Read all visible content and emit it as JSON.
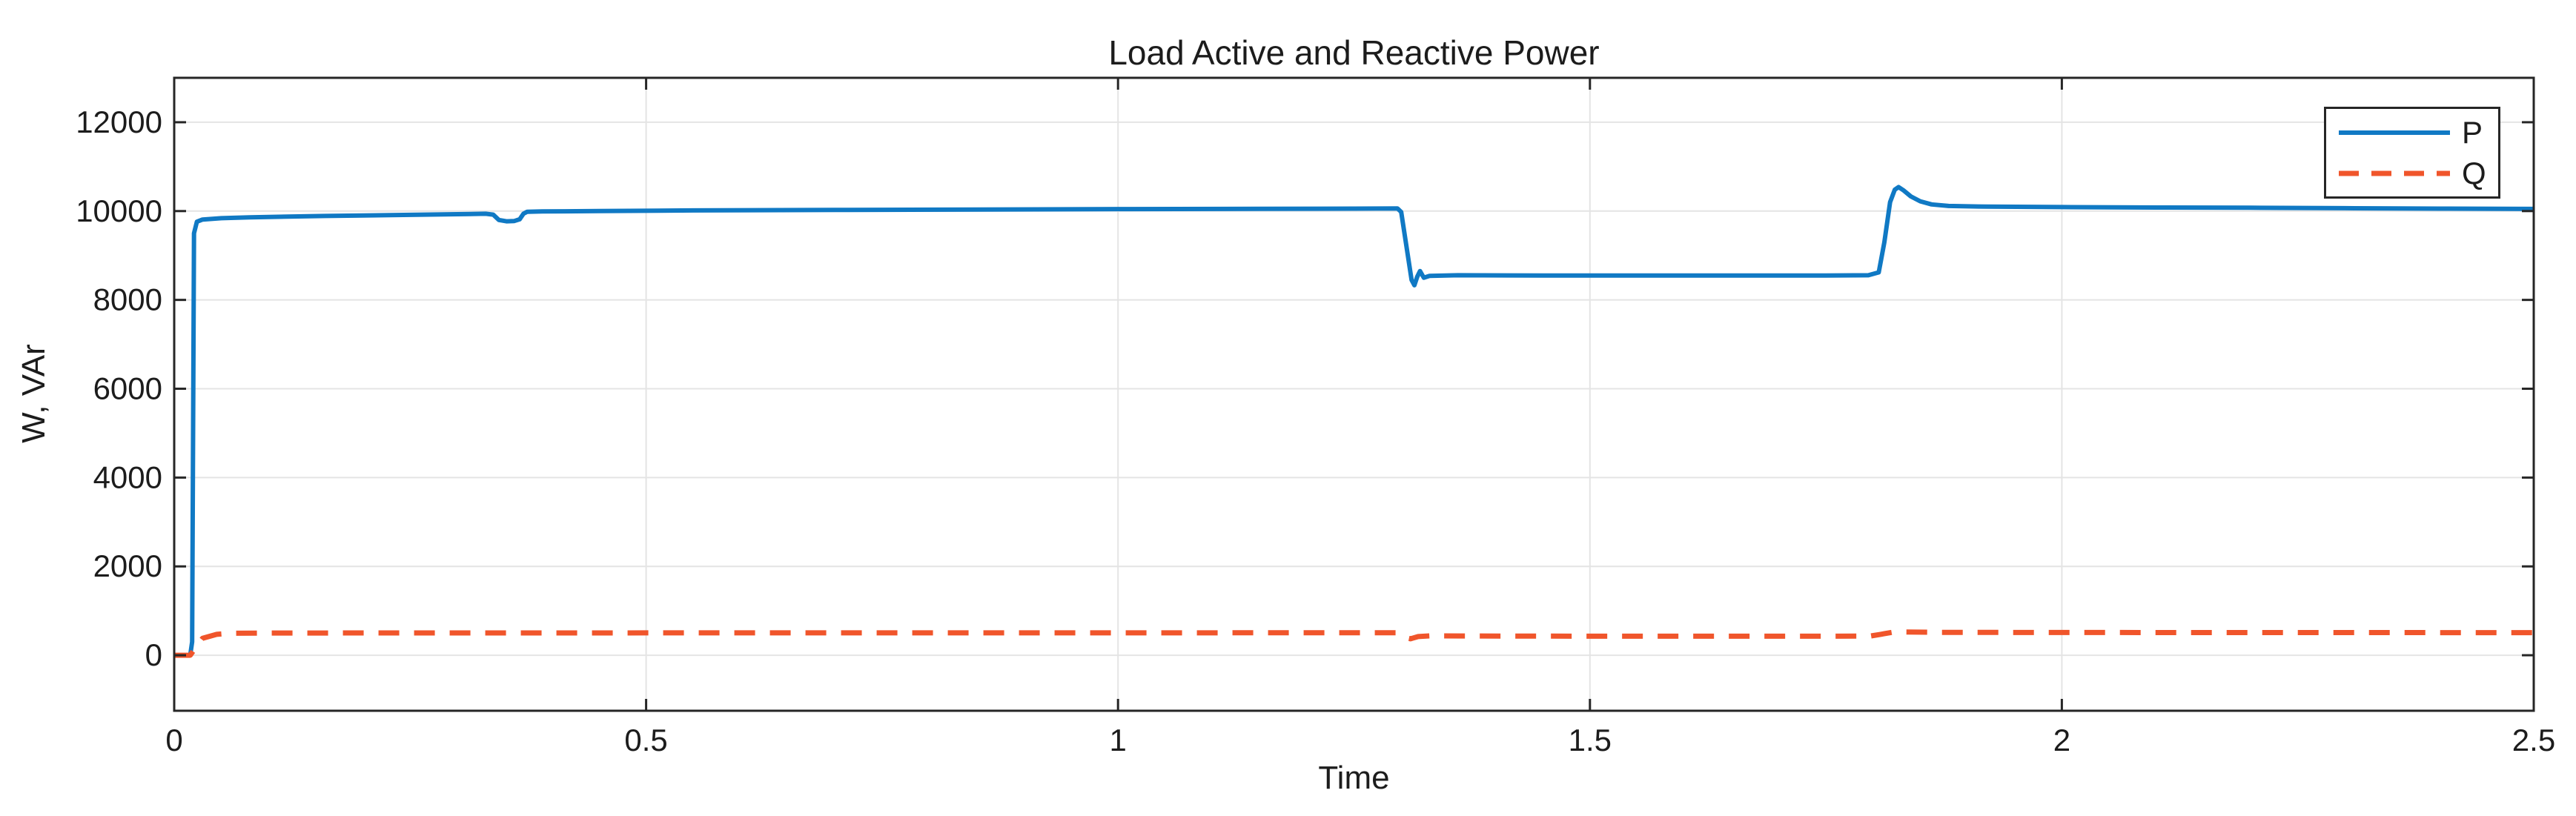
{
  "figure": {
    "title": "Load Active and Reactive Power",
    "xlabel": "Time",
    "ylabel": "W, VAr"
  },
  "legend": {
    "position": "northeast",
    "entries": [
      {
        "label": "P",
        "color": "#1079c4",
        "line_style": "solid"
      },
      {
        "label": "Q",
        "color": "#f0552b",
        "line_style": "dashed"
      }
    ]
  },
  "colors": {
    "axis": "#262626",
    "grid": "#e4e4e4",
    "text": "#1c1c1c",
    "background": "#ffffff",
    "series_p": "#1079c4",
    "series_q": "#f0552b"
  },
  "chart_data": {
    "type": "line",
    "title": "Load Active and Reactive Power",
    "xlabel": "Time",
    "ylabel": "W, VAr",
    "xlim": [
      0,
      2.5
    ],
    "ylim": [
      -1250,
      13000
    ],
    "x_ticks": [
      0,
      0.5,
      1,
      1.5,
      2,
      2.5
    ],
    "x_tick_labels": [
      "0",
      "0.5",
      "1",
      "1.5",
      "2",
      "2.5"
    ],
    "y_ticks": [
      0,
      2000,
      4000,
      6000,
      8000,
      10000,
      12000
    ],
    "y_tick_labels": [
      "0",
      "2000",
      "4000",
      "6000",
      "8000",
      "10000",
      "12000"
    ],
    "grid": true,
    "legend_position": "northeast",
    "series": [
      {
        "name": "P",
        "color": "#1079c4",
        "line_style": "solid",
        "line_width": 6,
        "points": [
          [
            0.0,
            0
          ],
          [
            0.017,
            0
          ],
          [
            0.019,
            300
          ],
          [
            0.021,
            9500
          ],
          [
            0.024,
            9760
          ],
          [
            0.03,
            9810
          ],
          [
            0.05,
            9840
          ],
          [
            0.08,
            9860
          ],
          [
            0.12,
            9875
          ],
          [
            0.16,
            9890
          ],
          [
            0.2,
            9900
          ],
          [
            0.25,
            9915
          ],
          [
            0.3,
            9930
          ],
          [
            0.33,
            9940
          ],
          [
            0.338,
            9920
          ],
          [
            0.344,
            9800
          ],
          [
            0.352,
            9770
          ],
          [
            0.36,
            9775
          ],
          [
            0.366,
            9815
          ],
          [
            0.37,
            9940
          ],
          [
            0.374,
            9985
          ],
          [
            0.39,
            9992
          ],
          [
            0.45,
            10000
          ],
          [
            0.55,
            10015
          ],
          [
            0.7,
            10025
          ],
          [
            0.85,
            10035
          ],
          [
            1.0,
            10045
          ],
          [
            1.15,
            10050
          ],
          [
            1.25,
            10055
          ],
          [
            1.296,
            10060
          ],
          [
            1.3,
            9980
          ],
          [
            1.311,
            8450
          ],
          [
            1.314,
            8330
          ],
          [
            1.317,
            8520
          ],
          [
            1.32,
            8650
          ],
          [
            1.324,
            8500
          ],
          [
            1.33,
            8540
          ],
          [
            1.36,
            8555
          ],
          [
            1.45,
            8550
          ],
          [
            1.55,
            8550
          ],
          [
            1.65,
            8550
          ],
          [
            1.75,
            8550
          ],
          [
            1.795,
            8555
          ],
          [
            1.806,
            8620
          ],
          [
            1.812,
            9300
          ],
          [
            1.818,
            10200
          ],
          [
            1.823,
            10480
          ],
          [
            1.827,
            10540
          ],
          [
            1.832,
            10470
          ],
          [
            1.84,
            10330
          ],
          [
            1.85,
            10220
          ],
          [
            1.862,
            10150
          ],
          [
            1.88,
            10115
          ],
          [
            1.92,
            10100
          ],
          [
            2.0,
            10090
          ],
          [
            2.1,
            10080
          ],
          [
            2.2,
            10075
          ],
          [
            2.3,
            10065
          ],
          [
            2.4,
            10055
          ],
          [
            2.5,
            10048
          ]
        ]
      },
      {
        "name": "Q",
        "color": "#f0552b",
        "line_style": "dashed",
        "line_width": 7,
        "points": [
          [
            0.0,
            0
          ],
          [
            0.017,
            0
          ],
          [
            0.022,
            150
          ],
          [
            0.03,
            380
          ],
          [
            0.045,
            470
          ],
          [
            0.06,
            495
          ],
          [
            0.1,
            500
          ],
          [
            0.3,
            502
          ],
          [
            0.6,
            503
          ],
          [
            0.9,
            504
          ],
          [
            1.15,
            505
          ],
          [
            1.295,
            505
          ],
          [
            1.303,
            400
          ],
          [
            1.31,
            370
          ],
          [
            1.318,
            420
          ],
          [
            1.33,
            435
          ],
          [
            1.45,
            430
          ],
          [
            1.6,
            428
          ],
          [
            1.75,
            428
          ],
          [
            1.797,
            432
          ],
          [
            1.808,
            470
          ],
          [
            1.82,
            515
          ],
          [
            1.835,
            522
          ],
          [
            1.87,
            515
          ],
          [
            2.0,
            512
          ],
          [
            2.2,
            510
          ],
          [
            2.5,
            508
          ]
        ]
      }
    ]
  }
}
